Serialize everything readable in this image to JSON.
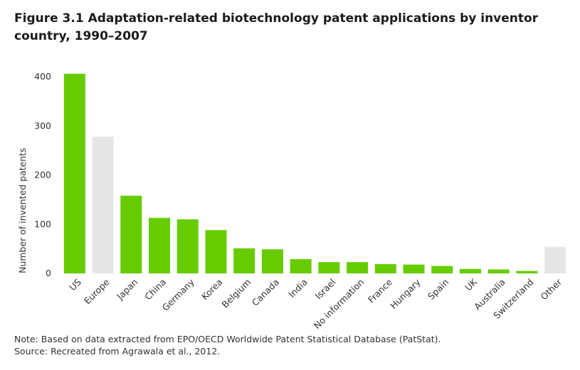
{
  "title": "Figure 3.1 Adaptation-related biotechnology patent applications by inventor country, 1990–2007",
  "note": "Note: Based on data extracted from EPO/OECD Worldwide Patent Statistical Database (PatStat).",
  "source": "Source: Recreated from Agrawala et al., 2012.",
  "colors": {
    "primary": "#66cc00",
    "secondary": "#e6e6e6"
  },
  "chart_data": {
    "type": "bar",
    "title": "Figure 3.1 Adaptation-related biotechnology patent applications by inventor country, 1990–2007",
    "xlabel": "",
    "ylabel": "Number of invented patents",
    "ylim": [
      0,
      400
    ],
    "yticks": [
      0,
      100,
      200,
      300,
      400
    ],
    "grid": false,
    "categories": [
      "US",
      "Europe",
      "Japan",
      "China",
      "Germany",
      "Korea",
      "Belgium",
      "Canada",
      "India",
      "Israel",
      "No information",
      "France",
      "Hungary",
      "Spain",
      "UK",
      "Australia",
      "Switzerland",
      "Other"
    ],
    "values": [
      406,
      278,
      158,
      113,
      110,
      88,
      51,
      49,
      29,
      23,
      23,
      19,
      18,
      15,
      9,
      8,
      5,
      54
    ],
    "bar_colors": [
      "primary",
      "secondary",
      "primary",
      "primary",
      "primary",
      "primary",
      "primary",
      "primary",
      "primary",
      "primary",
      "primary",
      "primary",
      "primary",
      "primary",
      "primary",
      "primary",
      "primary",
      "secondary"
    ]
  }
}
